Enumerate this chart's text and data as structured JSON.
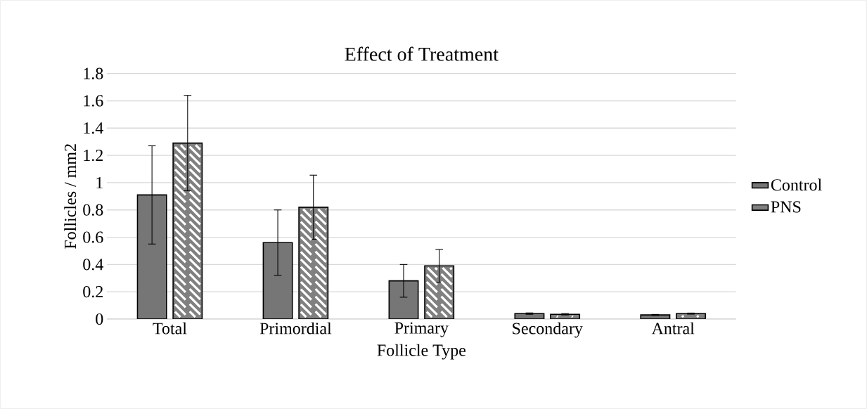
{
  "chart_data": {
    "type": "bar",
    "title": "Effect of Treatment",
    "xlabel": "Follicle Type",
    "ylabel": "Follicles / mm2",
    "categories": [
      "Total",
      "Primordial",
      "Primary",
      "Secondary",
      "Antral"
    ],
    "series": [
      {
        "name": "Control",
        "color": "#767676",
        "values": [
          0.91,
          0.56,
          0.28,
          0.04,
          0.03
        ],
        "errors": [
          0.36,
          0.24,
          0.12,
          0.005,
          0.004
        ]
      },
      {
        "name": "PNS",
        "color": "#808080",
        "values": [
          1.29,
          0.82,
          0.39,
          0.035,
          0.04
        ],
        "errors": [
          0.35,
          0.235,
          0.12,
          0.005,
          0.004
        ]
      }
    ],
    "ylim": [
      0,
      1.8
    ],
    "yticks": [
      0,
      0.2,
      0.4,
      0.6,
      0.8,
      1,
      1.2,
      1.4,
      1.6,
      1.8
    ],
    "grid": "y",
    "legend": "right"
  }
}
